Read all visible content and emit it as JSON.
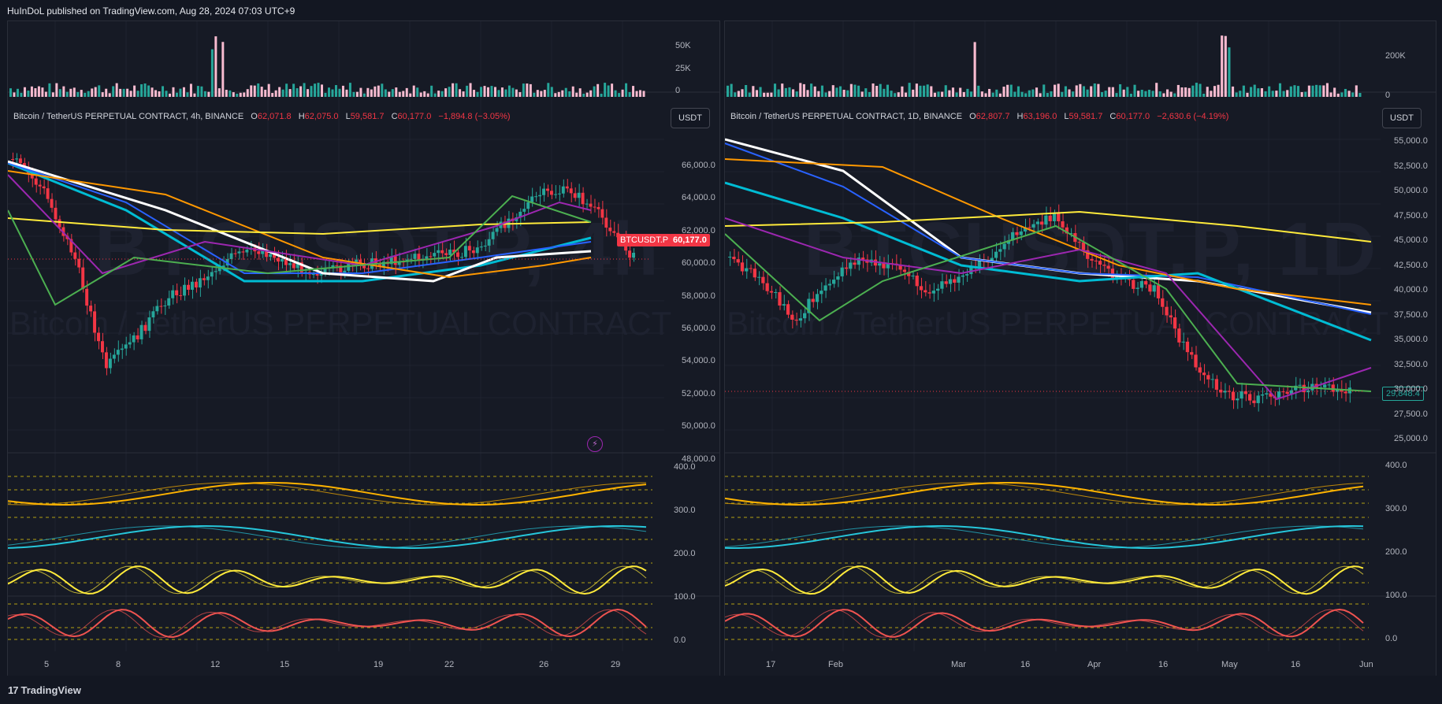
{
  "header": {
    "published": "HuInDoL published on TradingView.com, Aug 28, 2024 07:03 UTC+9"
  },
  "footer": {
    "logo_mark": "17",
    "brand": "TradingView"
  },
  "colors": {
    "background": "#131722",
    "up": "#26a69a",
    "down": "#f23645",
    "ema_white": "#ffffff",
    "ema_yellow": "#ffeb3b",
    "ema_orange": "#ff9800",
    "ema_cyan": "#00bcd4",
    "ema_blue": "#2962ff",
    "ema_purple": "#9c27b0",
    "ema_green": "#4caf50"
  },
  "left": {
    "watermark_ticker": "BTCUSDT.P, 4h",
    "watermark_name": "Bitcoin / TetherUS PERPETUAL CONTRACT",
    "legend": {
      "symbol": "Bitcoin / TetherUS PERPETUAL CONTRACT, 4h, BINANCE",
      "o_label": "O",
      "o": "62,071.8",
      "h_label": "H",
      "h": "62,075.0",
      "l_label": "L",
      "l": "59,581.7",
      "c_label": "C",
      "c": "60,177.0",
      "chg": "−1,894.8 (−3.05%)"
    },
    "currency": "USDT",
    "price_axis": [
      "66,000.0",
      "64,000.0",
      "62,000.0",
      "60,000.0",
      "58,000.0",
      "56,000.0",
      "54,000.0",
      "52,000.0",
      "50,000.0",
      "48,000.0"
    ],
    "volume_axis": [
      "50K",
      "25K",
      "0"
    ],
    "osc_axis": [
      "400.0",
      "300.0",
      "200.0",
      "100.0",
      "0.0"
    ],
    "time_axis": [
      "5",
      "8",
      "12",
      "15",
      "19",
      "22",
      "26",
      "29"
    ],
    "price_tag_symbol": "BTCUSDT.P",
    "price_tag_value": "60,177.0"
  },
  "right": {
    "watermark_ticker": "BTCUSDT.P, 1D",
    "watermark_name": "Bitcoin / TetherUS PERPETUAL CONTRACT",
    "legend": {
      "symbol": "Bitcoin / TetherUS PERPETUAL CONTRACT, 1D, BINANCE",
      "o_label": "O",
      "o": "62,807.7",
      "h_label": "H",
      "h": "63,196.0",
      "l_label": "L",
      "l": "59,581.7",
      "c_label": "C",
      "c": "60,177.0",
      "chg": "−2,630.6 (−4.19%)"
    },
    "currency": "USDT",
    "price_axis": [
      "55,000.0",
      "52,500.0",
      "50,000.0",
      "47,500.0",
      "45,000.0",
      "42,500.0",
      "40,000.0",
      "37,500.0",
      "35,000.0",
      "32,500.0",
      "30,000.0",
      "27,500.0",
      "25,000.0"
    ],
    "volume_axis": [
      "200K",
      "0"
    ],
    "osc_axis": [
      "400.0",
      "300.0",
      "200.0",
      "100.0",
      "0.0"
    ],
    "time_axis": [
      "17",
      "Feb",
      "Mar",
      "16",
      "Apr",
      "16",
      "May",
      "16",
      "Jun"
    ],
    "price_tag_value": "29,848.4"
  }
}
